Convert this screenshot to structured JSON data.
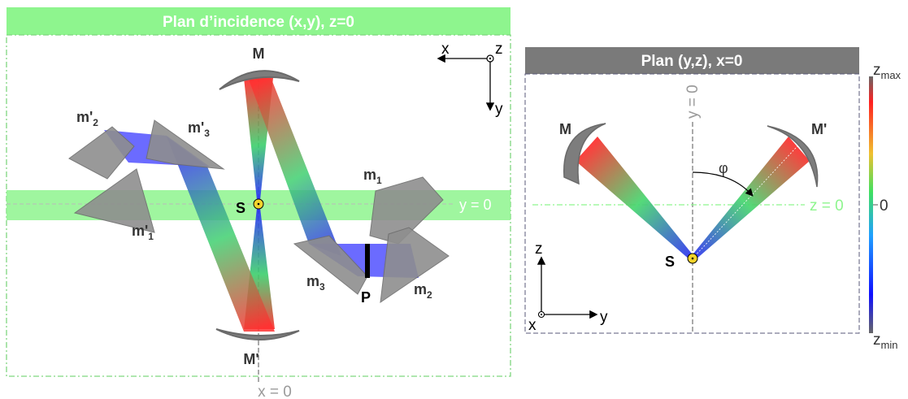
{
  "colors": {
    "plane_green": "#8ef58e",
    "plane_green_dash": "#7fd67f",
    "header_gray": "#7a7a7a",
    "element_gray": "#8e8e8e",
    "mirror_gray": "#7d7d7d",
    "beam_red": "#ff2020",
    "beam_green": "#40e040",
    "beam_blue": "#2020ff",
    "source_yellow": "#f2d32b"
  },
  "left_panel": {
    "title": "Plan d’incidence (x,y), z=0",
    "axis_x": "x",
    "axis_y": "y",
    "axis_z": "z",
    "y_plane_label": "y = 0",
    "x_plane_label": "x = 0",
    "source_label": "S",
    "mirror_top": "M",
    "mirror_bottom": "M'",
    "polarizer_label": "P",
    "prism_labels": {
      "m1": {
        "base": "m",
        "sub": "1"
      },
      "m2": {
        "base": "m",
        "sub": "2"
      },
      "m3": {
        "base": "m",
        "sub": "3"
      },
      "m1p": {
        "base": "m'",
        "sub": "1"
      },
      "m2p": {
        "base": "m'",
        "sub": "2"
      },
      "m3p": {
        "base": "m'",
        "sub": "3"
      }
    }
  },
  "right_panel": {
    "title": "Plan (y,z), x=0",
    "y_axis_line_label": "y = 0",
    "z_plane_label": "z = 0",
    "mirror_left": "M",
    "mirror_right": "M'",
    "angle_label": "φ",
    "source_label": "S",
    "axis_z": "z",
    "axis_y": "y",
    "axis_x": "x"
  },
  "colorbar": {
    "max_base": "z",
    "max_sub": "max",
    "mid": "0",
    "min_base": "z",
    "min_sub": "min"
  }
}
